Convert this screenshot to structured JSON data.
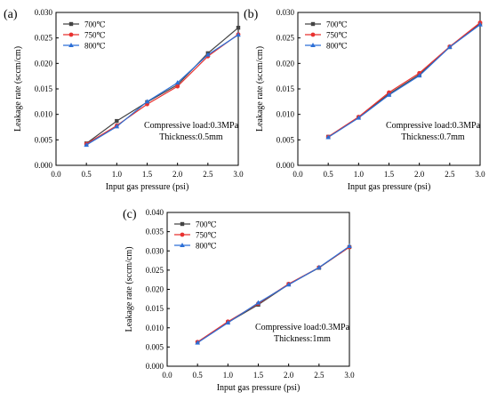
{
  "chart_data": [
    {
      "panel_label": "(a)",
      "type": "line",
      "x": [
        0.5,
        1.0,
        1.5,
        2.0,
        2.5,
        3.0
      ],
      "xlabel": "Input gas pressure (psi)",
      "ylabel": "Leakage rate (sccm/cm)",
      "xlim": [
        0.0,
        3.0
      ],
      "ylim": [
        0.0,
        0.03
      ],
      "xticks": [
        "0.0",
        "0.5",
        "1.0",
        "1.5",
        "2.0",
        "2.5",
        "3.0"
      ],
      "yticks": [
        "0.000",
        "0.005",
        "0.010",
        "0.015",
        "0.020",
        "0.025",
        "0.030"
      ],
      "legend_position": "top-left",
      "annotation": [
        "Compressive load:0.3MPa",
        "Thickness:0.5mm"
      ],
      "series": [
        {
          "name": "700℃",
          "color": "#444444",
          "marker": "square",
          "values": [
            0.0043,
            0.0087,
            0.0124,
            0.0158,
            0.022,
            0.027
          ]
        },
        {
          "name": "750℃",
          "color": "#e8312f",
          "marker": "circle",
          "values": [
            0.0042,
            0.0078,
            0.012,
            0.0155,
            0.0214,
            0.0257
          ]
        },
        {
          "name": "800℃",
          "color": "#2c6fd6",
          "marker": "triangle",
          "values": [
            0.004,
            0.0076,
            0.0125,
            0.0162,
            0.0217,
            0.0256
          ]
        }
      ]
    },
    {
      "panel_label": "(b)",
      "type": "line",
      "x": [
        0.5,
        1.0,
        1.5,
        2.0,
        2.5,
        3.0
      ],
      "xlabel": "Input gas pressure (psi)",
      "ylabel": "Leakage rate (sccm/cm)",
      "xlim": [
        0.0,
        3.0
      ],
      "ylim": [
        0.0,
        0.03
      ],
      "xticks": [
        "0.0",
        "0.5",
        "1.0",
        "1.5",
        "2.0",
        "2.5",
        "3.0"
      ],
      "yticks": [
        "0.000",
        "0.005",
        "0.010",
        "0.015",
        "0.020",
        "0.025",
        "0.030"
      ],
      "legend_position": "top-left",
      "annotation": [
        "Compressive load:0.3MPa",
        "Thickness:0.7mm"
      ],
      "series": [
        {
          "name": "700℃",
          "color": "#444444",
          "marker": "square",
          "values": [
            0.0056,
            0.0094,
            0.014,
            0.0178,
            0.0232,
            0.0278
          ]
        },
        {
          "name": "750℃",
          "color": "#e8312f",
          "marker": "circle",
          "values": [
            0.0056,
            0.0095,
            0.0143,
            0.0181,
            0.0233,
            0.028
          ]
        },
        {
          "name": "800℃",
          "color": "#2c6fd6",
          "marker": "triangle",
          "values": [
            0.0055,
            0.0093,
            0.0138,
            0.0176,
            0.0232,
            0.0276
          ]
        }
      ]
    },
    {
      "panel_label": "(c)",
      "type": "line",
      "x": [
        0.5,
        1.0,
        1.5,
        2.0,
        2.5,
        3.0
      ],
      "xlabel": "Input gas pressure (psi)",
      "ylabel": "Leakage rate (sccm/cm)",
      "xlim": [
        0.0,
        3.0
      ],
      "ylim": [
        0.0,
        0.04
      ],
      "xticks": [
        "0.0",
        "0.5",
        "1.0",
        "1.5",
        "2.0",
        "2.5",
        "3.0"
      ],
      "yticks": [
        "0.000",
        "0.005",
        "0.010",
        "0.015",
        "0.020",
        "0.025",
        "0.030",
        "0.035",
        "0.040"
      ],
      "legend_position": "top-left",
      "annotation": [
        "Compressive load:0.3MPa",
        "Thickness:1mm"
      ],
      "series": [
        {
          "name": "700℃",
          "color": "#444444",
          "marker": "square",
          "values": [
            0.0062,
            0.0114,
            0.016,
            0.0213,
            0.0256,
            0.031
          ]
        },
        {
          "name": "750℃",
          "color": "#e8312f",
          "marker": "circle",
          "values": [
            0.0063,
            0.0116,
            0.0163,
            0.0214,
            0.0257,
            0.031
          ]
        },
        {
          "name": "800℃",
          "color": "#2c6fd6",
          "marker": "triangle",
          "values": [
            0.0061,
            0.0113,
            0.0165,
            0.0212,
            0.0257,
            0.0312
          ]
        }
      ]
    }
  ]
}
